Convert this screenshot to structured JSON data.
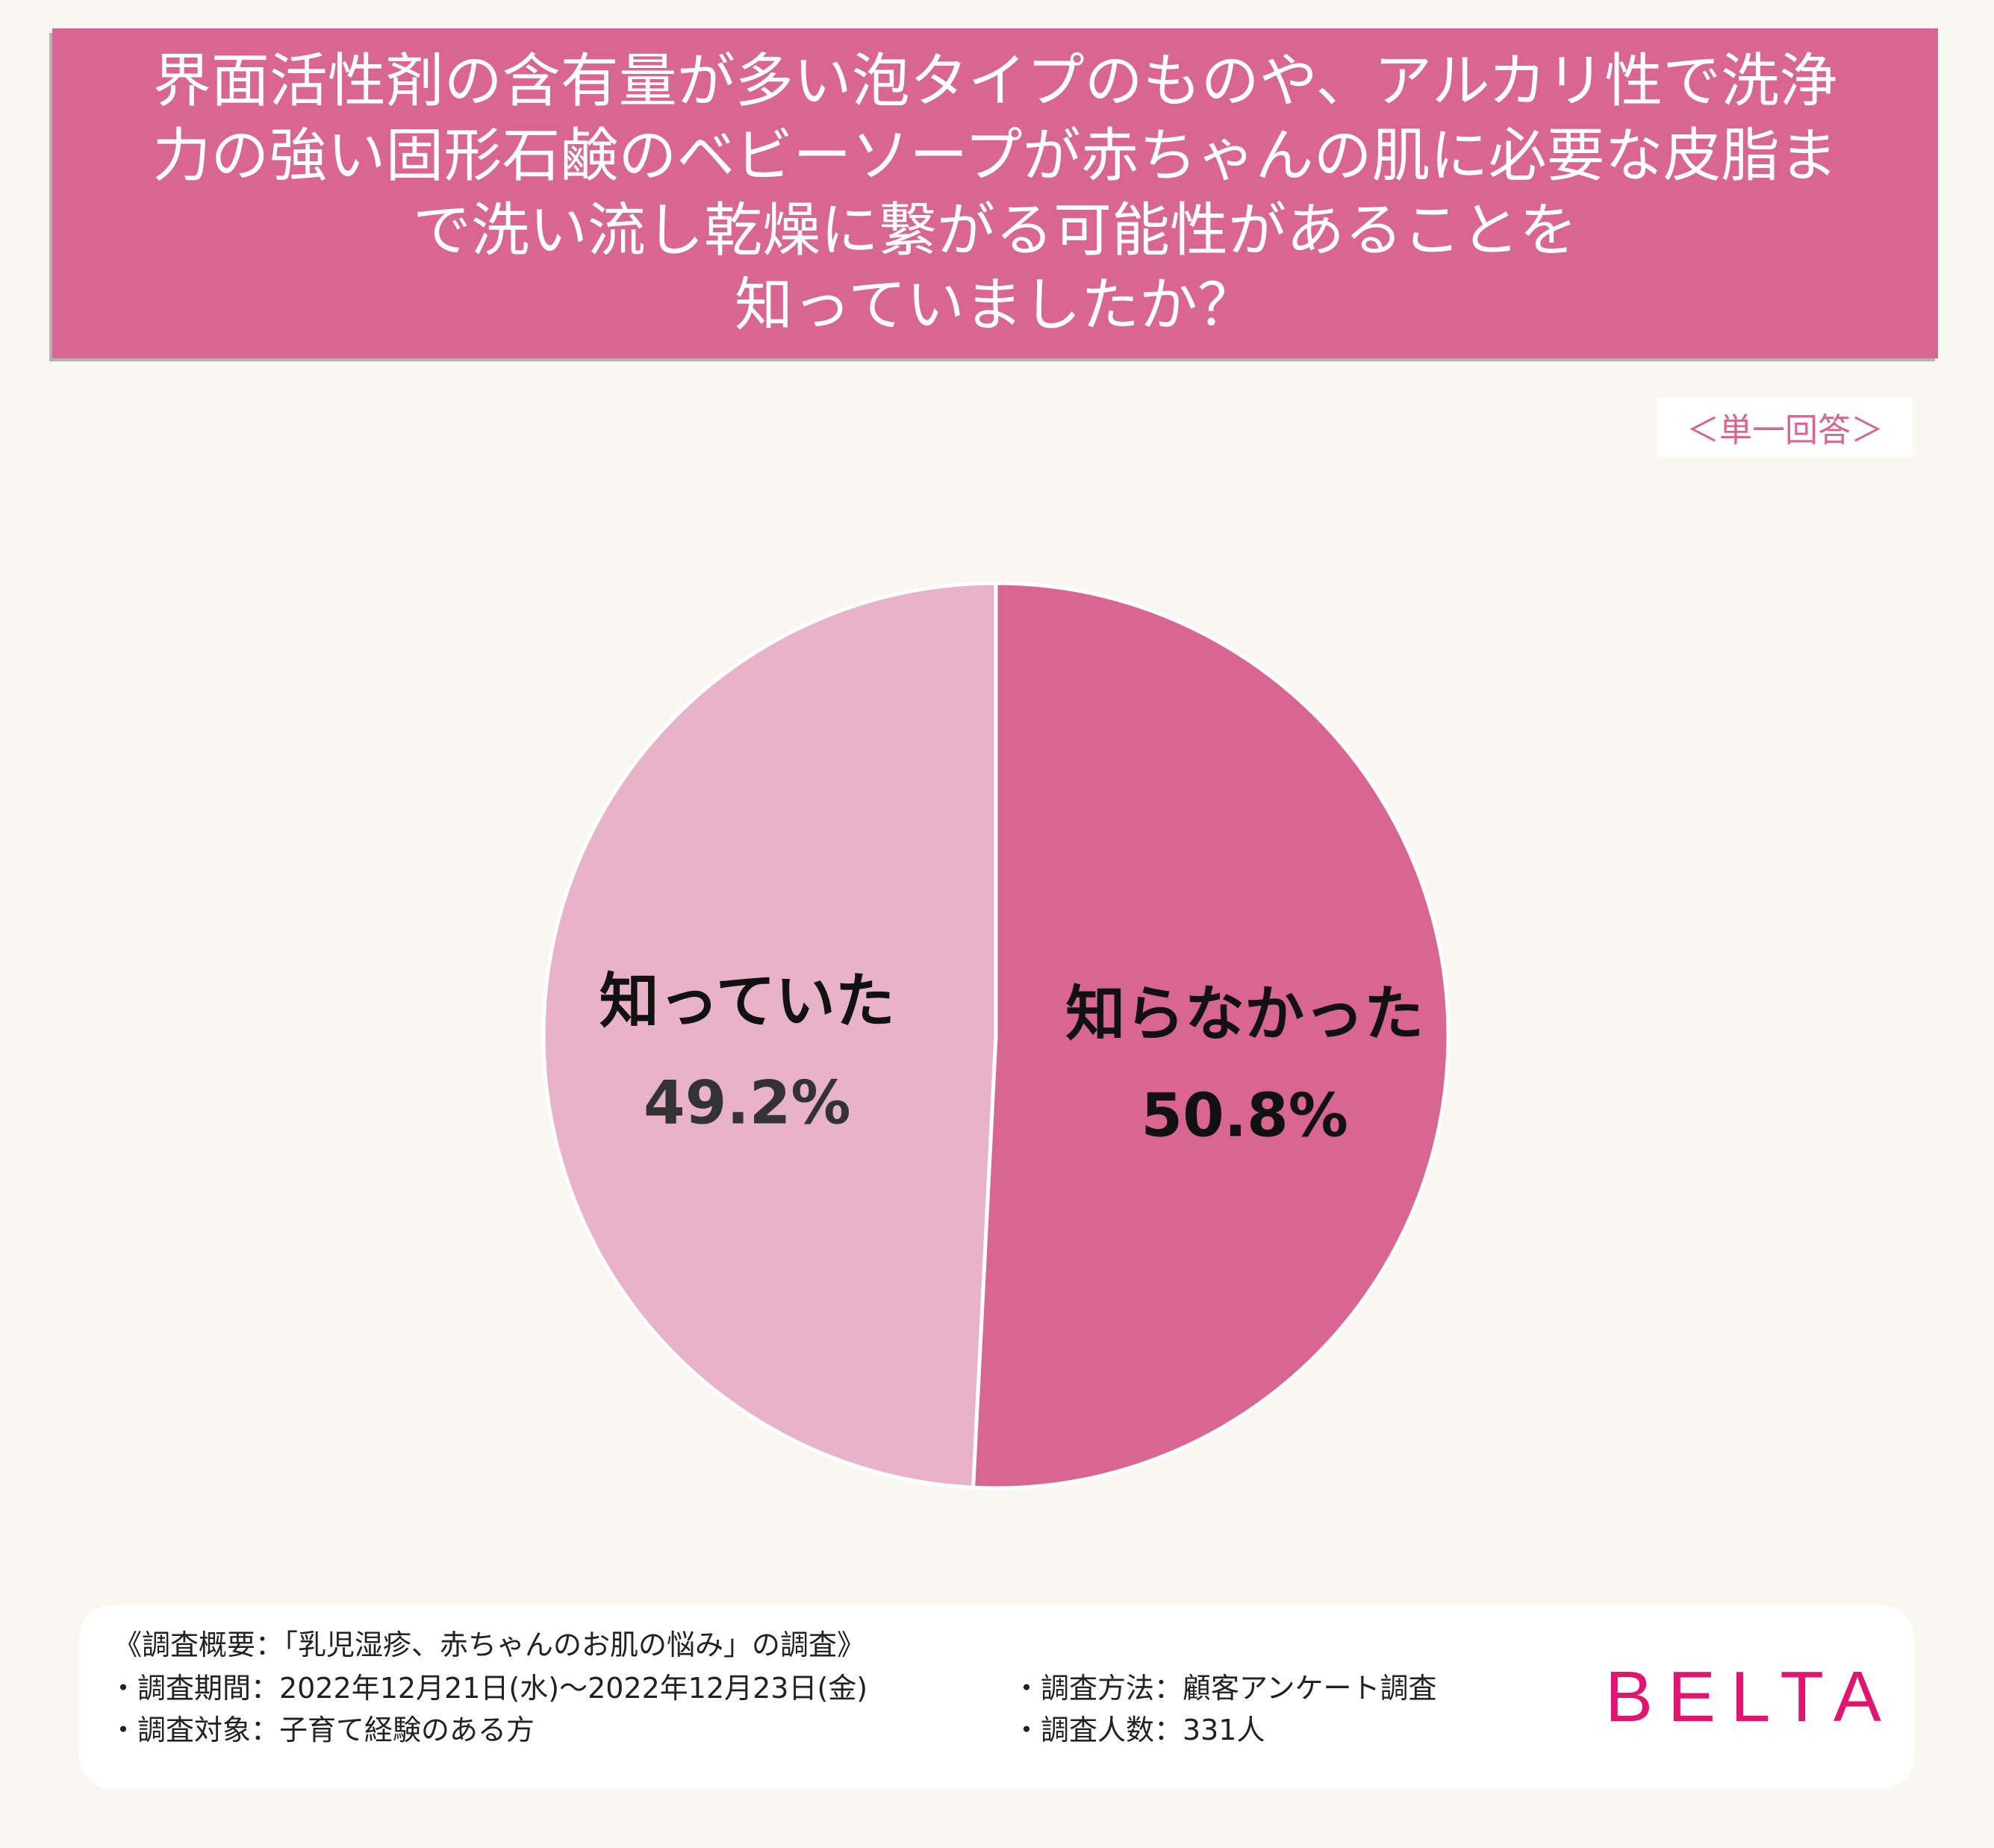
{
  "title": "界面活性剤の含有量が多い泡タイプのものや、アルカリ性で洗浄\n力の強い固形石鹸のベビーソープが赤ちゃんの肌に必要な皮脂ま\nで洗い流し乾燥に繋がる可能性があることを\n知っていましたか？",
  "answer_type": "＜単一回答＞",
  "colors": {
    "banner": "#d86592",
    "slice_unknown": "#d86592",
    "slice_known": "#e8b3c8",
    "brand": "#e0156f",
    "background": "#f9f7f2"
  },
  "chart_data": {
    "type": "pie",
    "title": "界面活性剤の含有量が多い泡タイプのものや、アルカリ性で洗浄力の強い固形石鹸のベビーソープが赤ちゃんの肌に必要な皮脂まで洗い流し乾燥に繋がる可能性があることを知っていましたか？",
    "slices": [
      {
        "label": "知らなかった",
        "value": 50.8,
        "value_label": "50.8%",
        "color": "#d86592",
        "label_color": "#111111"
      },
      {
        "label": "知っていた",
        "value": 49.2,
        "value_label": "49.2%",
        "color": "#e8b3c8",
        "label_color": "#333333"
      }
    ],
    "start": "12 o'clock",
    "direction": "clockwise"
  },
  "footer": {
    "overview": "《調査概要：「乳児湿疹、赤ちゃんのお肌の悩み」の調査》",
    "period": "・調査期間：2022年12月21日(水)～2022年12月23日(金)",
    "target": "・調査対象：子育て経験のある方",
    "method": "・調査方法：顧客アンケート調査",
    "count": "・調査人数：331人"
  },
  "brand": "BELTA"
}
